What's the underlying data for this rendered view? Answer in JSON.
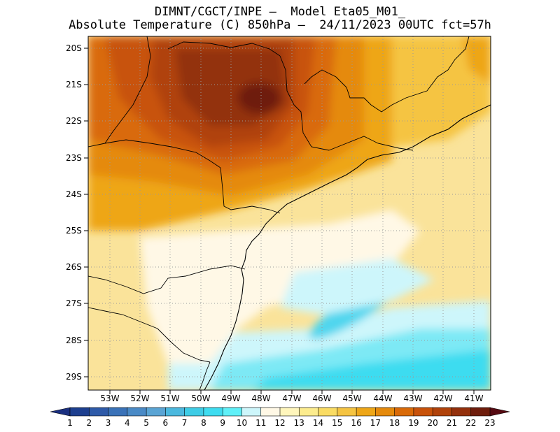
{
  "header": {
    "line1": "DIMNT/CGCT/INPE –  Model Eta05_M01_",
    "line2": "Absolute Temperature (C) 850hPa –  24/11/2023 00UTC fct=57h"
  },
  "axes": {
    "lat_labels": [
      "20S",
      "21S",
      "22S",
      "23S",
      "24S",
      "25S",
      "26S",
      "27S",
      "28S",
      "29S"
    ],
    "lon_labels": [
      "53W",
      "52W",
      "51W",
      "50W",
      "49W",
      "48W",
      "47W",
      "46W",
      "45W",
      "44W",
      "43W",
      "42W",
      "41W"
    ]
  },
  "colorbar": {
    "labels": [
      "1",
      "2",
      "3",
      "4",
      "5",
      "6",
      "7",
      "8",
      "9",
      "10",
      "11",
      "12",
      "13",
      "14",
      "15",
      "16",
      "17",
      "18",
      "19",
      "20",
      "21",
      "22",
      "23"
    ],
    "colors": [
      "#1d3f8f",
      "#2e5aa8",
      "#3a72b8",
      "#4a8ac6",
      "#5aa4d4",
      "#4bb8de",
      "#3ecce6",
      "#3edcf0",
      "#5ff0f8",
      "#cdf6fb",
      "#fff8e6",
      "#fff6bc",
      "#fcec8e",
      "#fadc64",
      "#f5c442",
      "#eea618",
      "#e58a0c",
      "#d96a08",
      "#c8520a",
      "#b0420a",
      "#93300c",
      "#6e1d0c"
    ],
    "low_arrow_color": "#1a2f80",
    "high_arrow_color": "#560a12"
  }
}
